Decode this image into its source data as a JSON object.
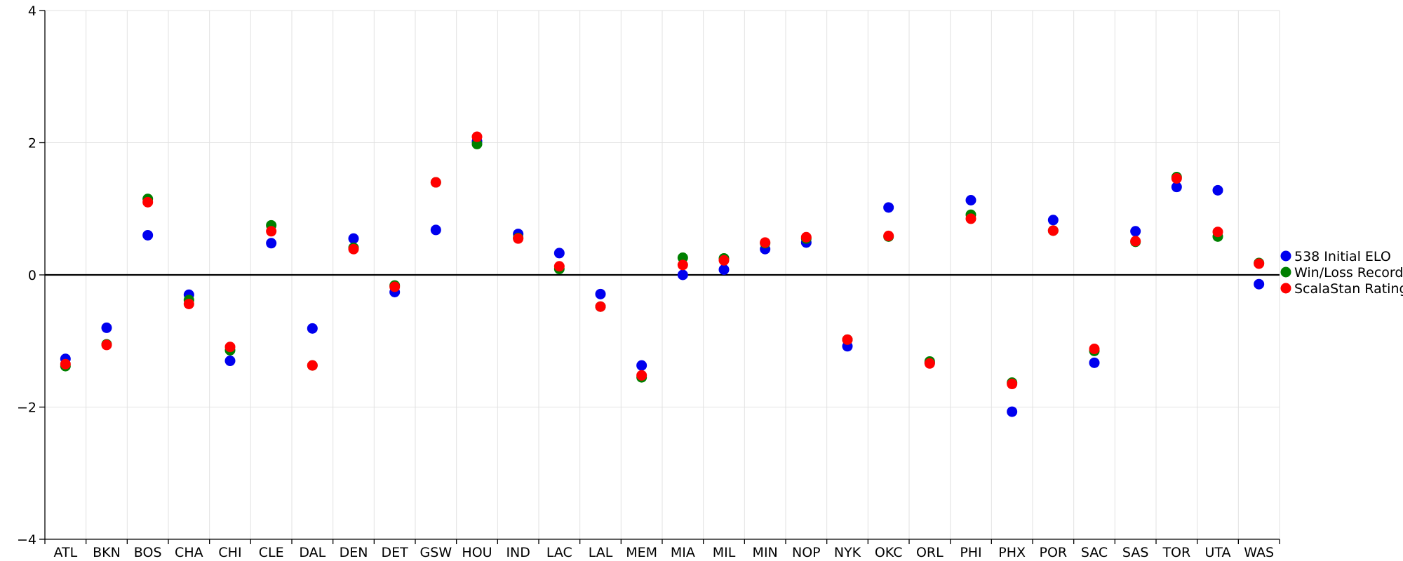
{
  "chart_data": {
    "type": "scatter",
    "title": "",
    "xlabel": "",
    "ylabel": "",
    "ylim": [
      -4,
      4
    ],
    "yticks": [
      -4,
      -2,
      0,
      2,
      4
    ],
    "grid": true,
    "legend_position": "right",
    "categories": [
      "ATL",
      "BKN",
      "BOS",
      "CHA",
      "CHI",
      "CLE",
      "DAL",
      "DEN",
      "DET",
      "GSW",
      "HOU",
      "IND",
      "LAC",
      "LAL",
      "MEM",
      "MIA",
      "MIL",
      "MIN",
      "NOP",
      "NYK",
      "OKC",
      "ORL",
      "PHI",
      "PHX",
      "POR",
      "SAC",
      "SAS",
      "TOR",
      "UTA",
      "WAS"
    ],
    "series": [
      {
        "name": "538 Initial ELO",
        "color": "#0000ee",
        "values": [
          -1.27,
          -0.8,
          0.6,
          -0.3,
          -1.3,
          0.48,
          -0.81,
          0.55,
          -0.26,
          0.68,
          2.02,
          0.62,
          0.33,
          -0.29,
          -1.37,
          0.0,
          0.08,
          0.39,
          0.49,
          -1.08,
          1.02,
          -1.33,
          1.13,
          -2.07,
          0.83,
          -1.33,
          0.66,
          1.33,
          1.28,
          -0.14
        ]
      },
      {
        "name": "Win/Loss Record",
        "color": "#008000",
        "values": [
          -1.38,
          -1.05,
          1.15,
          -0.38,
          -1.14,
          0.75,
          -1.37,
          0.41,
          -0.16,
          1.4,
          1.98,
          0.56,
          0.09,
          -0.48,
          -1.55,
          0.26,
          0.25,
          0.48,
          0.55,
          -0.98,
          0.58,
          -1.31,
          0.91,
          -1.63,
          0.67,
          -1.15,
          0.5,
          1.48,
          0.58,
          0.18
        ]
      },
      {
        "name": "ScalaStan Rating",
        "color": "#ff0000",
        "values": [
          -1.35,
          -1.06,
          1.1,
          -0.44,
          -1.09,
          0.66,
          -1.37,
          0.39,
          -0.18,
          1.4,
          2.09,
          0.55,
          0.13,
          -0.48,
          -1.52,
          0.15,
          0.22,
          0.49,
          0.57,
          -0.98,
          0.59,
          -1.34,
          0.85,
          -1.65,
          0.67,
          -1.12,
          0.51,
          1.46,
          0.65,
          0.17
        ]
      }
    ]
  }
}
